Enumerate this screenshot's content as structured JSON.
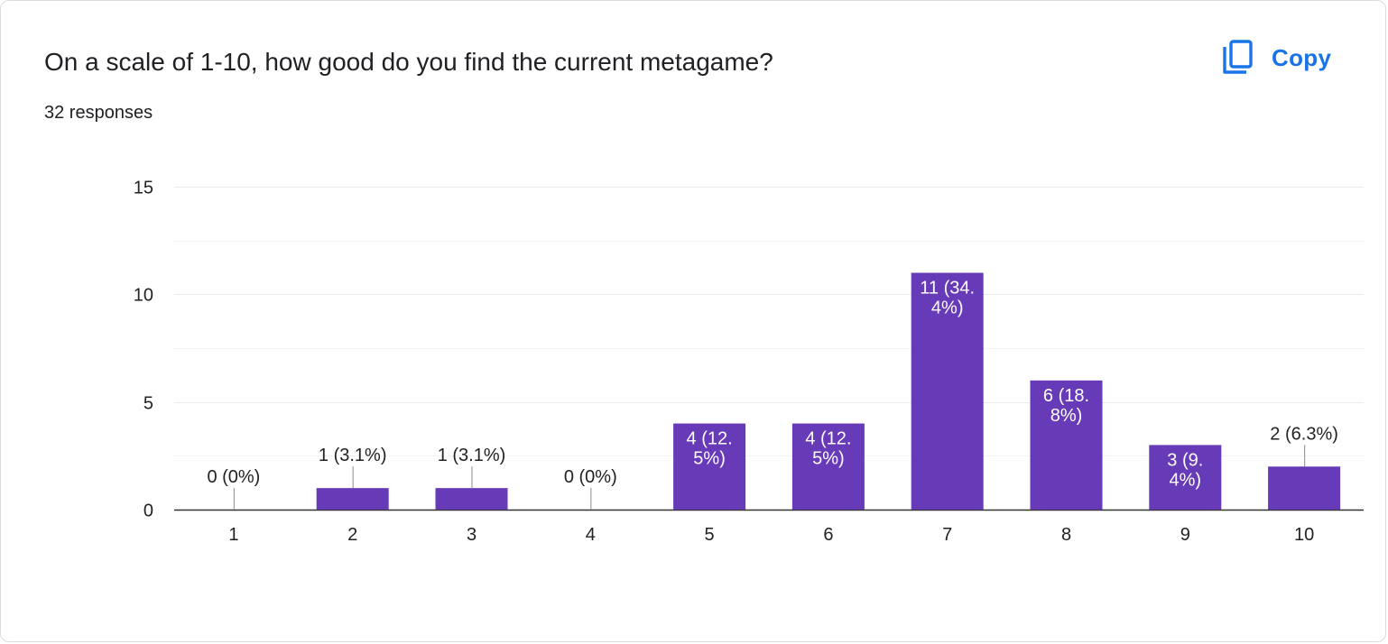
{
  "question": {
    "title": "On a scale of 1-10, how good do you find the current metagame?",
    "responses": "32 responses"
  },
  "toolbar": {
    "copy_label": "Copy",
    "copy_icon": "copy-icon"
  },
  "colors": {
    "bar": "#673ab7",
    "accent": "#1a73e8",
    "grid": "#ebebeb",
    "axis": "#333333",
    "inside_label": "#ffffff",
    "outside_label": "#222222"
  },
  "chart_data": {
    "type": "bar",
    "categories": [
      "1",
      "2",
      "3",
      "4",
      "5",
      "6",
      "7",
      "8",
      "9",
      "10"
    ],
    "values": [
      0,
      1,
      1,
      0,
      4,
      4,
      11,
      6,
      3,
      2
    ],
    "data_labels": [
      [
        "0 (0%)"
      ],
      [
        "1 (3.1%)"
      ],
      [
        "1 (3.1%)"
      ],
      [
        "0 (0%)"
      ],
      [
        "4 (12.",
        "5%)"
      ],
      [
        "4 (12.",
        "5%)"
      ],
      [
        "11 (34.",
        "4%)"
      ],
      [
        "6 (18.",
        "8%)"
      ],
      [
        "3 (9.",
        "4%)"
      ],
      [
        "2 (6.3%)"
      ]
    ],
    "label_inside": [
      false,
      false,
      false,
      false,
      true,
      true,
      true,
      true,
      true,
      false
    ],
    "ylim": [
      0,
      15
    ],
    "yticks": [
      0,
      5,
      10,
      15
    ],
    "minor_gridlines": [
      2.5,
      7.5,
      12.5
    ],
    "grid": true,
    "legend": "none"
  }
}
